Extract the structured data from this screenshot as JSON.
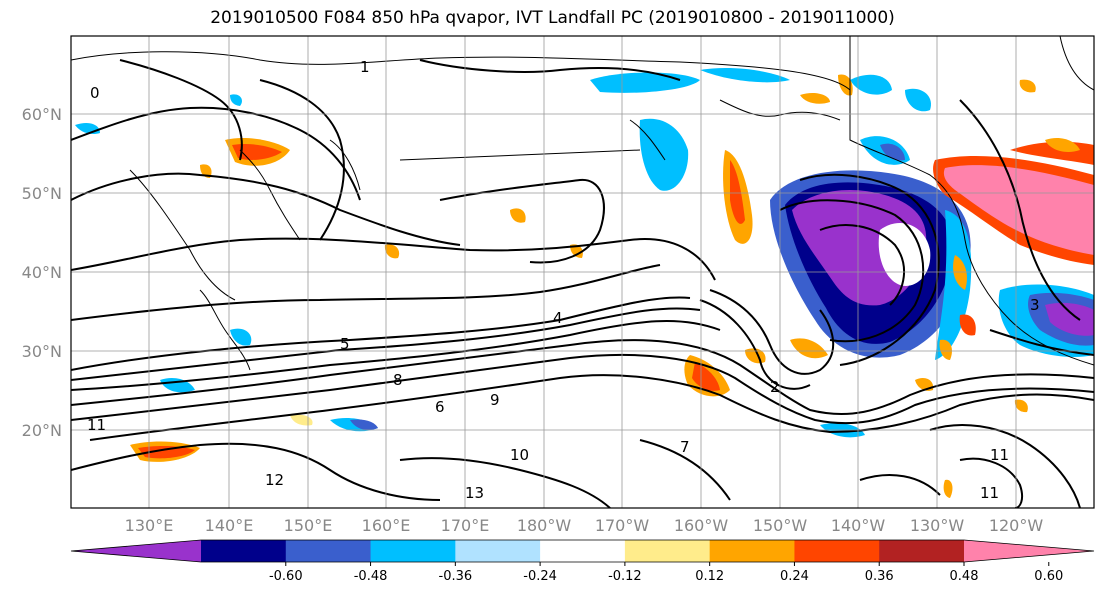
{
  "title": "2019010500 F084 850 hPa qvapor, IVT Landfall PC (2019010800 - 2019011000)",
  "lat_labels": [
    "60°N",
    "50°N",
    "40°N",
    "30°N",
    "20°N"
  ],
  "lon_labels": [
    "130°E",
    "140°E",
    "150°E",
    "160°E",
    "170°E",
    "180°W",
    "170°W",
    "160°W",
    "150°W",
    "140°W",
    "130°W",
    "120°W"
  ],
  "colorbar": {
    "colors": [
      "#9932cc",
      "#00008b",
      "#3a5fcd",
      "#00bfff",
      "#b0e2ff",
      "#ffffff",
      "#ffec8b",
      "#ffa500",
      "#ff4500",
      "#b22222",
      "#ff82ab"
    ],
    "tick_labels": [
      "-0.60",
      "-0.48",
      "-0.36",
      "-0.24",
      "-0.12",
      "0.12",
      "0.24",
      "0.36",
      "0.48",
      "0.60"
    ]
  },
  "contour_labels": [
    "4",
    "5",
    "8",
    "6",
    "9",
    "10",
    "11",
    "12",
    "13",
    "7",
    "2",
    "1",
    "0",
    "3"
  ]
}
